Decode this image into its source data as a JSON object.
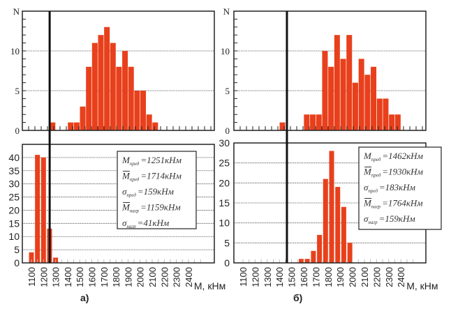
{
  "colors": {
    "bar": "#e8401c",
    "axis": "#222222",
    "threshold_line": "#111111",
    "grid": "#555555"
  },
  "chart_data": [
    {
      "id": "a_top",
      "type": "bar",
      "panel": "а)",
      "ylabel": "N",
      "ylim": [
        0,
        15
      ],
      "yticks": [
        0,
        5,
        10
      ],
      "xlim": [
        1050,
        2500
      ],
      "grid": true,
      "x": [
        1275,
        1425,
        1475,
        1525,
        1575,
        1625,
        1675,
        1725,
        1775,
        1825,
        1875,
        1925,
        1975,
        2025,
        2075,
        2125
      ],
      "values": [
        1,
        1,
        1,
        3,
        8,
        11,
        12,
        13,
        11,
        8,
        10,
        8,
        5,
        5,
        2,
        1
      ],
      "threshold": 1251
    },
    {
      "id": "a_bottom",
      "type": "bar",
      "panel": "а)",
      "ylim": [
        0,
        45
      ],
      "yticks": [
        0,
        5,
        10,
        15,
        20,
        25,
        30,
        35,
        40
      ],
      "xlim": [
        1050,
        2500
      ],
      "grid": true,
      "xticks": [
        "1100",
        "1200",
        "1300",
        "1400",
        "1500",
        "1600",
        "1700",
        "1800",
        "1900",
        "2000",
        "2100",
        "2200",
        "2300",
        "2400"
      ],
      "xlabel": "M, кНм",
      "x": [
        1100,
        1150,
        1200,
        1250,
        1300
      ],
      "values": [
        4,
        41,
        40,
        13,
        2
      ],
      "threshold": 1251,
      "legend": [
        {
          "sym": "M",
          "bar": false,
          "sub": "пред",
          "eq": "=1251кНм"
        },
        {
          "sym": "M",
          "bar": true,
          "sub": "пред",
          "eq": "=1714кНм"
        },
        {
          "sym": "σ",
          "bar": false,
          "sub": "пред",
          "eq": "=159кНм"
        },
        {
          "sym": "M",
          "bar": true,
          "sub": "нагр",
          "eq": "=1159кНм"
        },
        {
          "sym": "σ",
          "bar": false,
          "sub": "нагр",
          "eq": "=41кНм"
        }
      ],
      "caption": "а)"
    },
    {
      "id": "b_top",
      "type": "bar",
      "panel": "б)",
      "ylabel": "N",
      "ylim": [
        0,
        15
      ],
      "yticks": [
        0,
        5,
        10
      ],
      "xlim": [
        1050,
        2500
      ],
      "grid": true,
      "x": [
        1425,
        1625,
        1675,
        1725,
        1775,
        1825,
        1875,
        1925,
        1975,
        2025,
        2075,
        2125,
        2175,
        2225,
        2275,
        2325,
        2375
      ],
      "values": [
        1,
        2,
        2,
        2,
        10,
        8,
        12,
        9,
        12,
        6,
        9,
        7,
        8,
        4,
        4,
        2,
        2
      ],
      "threshold": 1462
    },
    {
      "id": "b_bottom",
      "type": "bar",
      "panel": "б)",
      "ylim": [
        0,
        30
      ],
      "yticks": [
        0,
        5,
        10,
        15,
        20,
        25,
        30
      ],
      "xlim": [
        1050,
        2500
      ],
      "grid": true,
      "xticks": [
        "1100",
        "1200",
        "1300",
        "1400",
        "1500",
        "1600",
        "1700",
        "1800",
        "1900",
        "2000",
        "2100",
        "2200",
        "2300",
        "2400"
      ],
      "xlabel": "M, кНм",
      "x": [
        1580,
        1630,
        1680,
        1730,
        1780,
        1830,
        1880,
        1930,
        1980
      ],
      "values": [
        1,
        1,
        3,
        7,
        21,
        28,
        19,
        14,
        5
      ],
      "threshold": 1462,
      "legend": [
        {
          "sym": "M",
          "bar": false,
          "sub": "пред",
          "eq": "=1462кНм"
        },
        {
          "sym": "M",
          "bar": true,
          "sub": "пред",
          "eq": "=1930кНм"
        },
        {
          "sym": "σ",
          "bar": false,
          "sub": "пред",
          "eq": "=183кНм"
        },
        {
          "sym": "M",
          "bar": true,
          "sub": "нагр",
          "eq": "=1764кНм"
        },
        {
          "sym": "σ",
          "bar": false,
          "sub": "нагр",
          "eq": "=159кНм"
        }
      ],
      "caption": "б)"
    }
  ]
}
